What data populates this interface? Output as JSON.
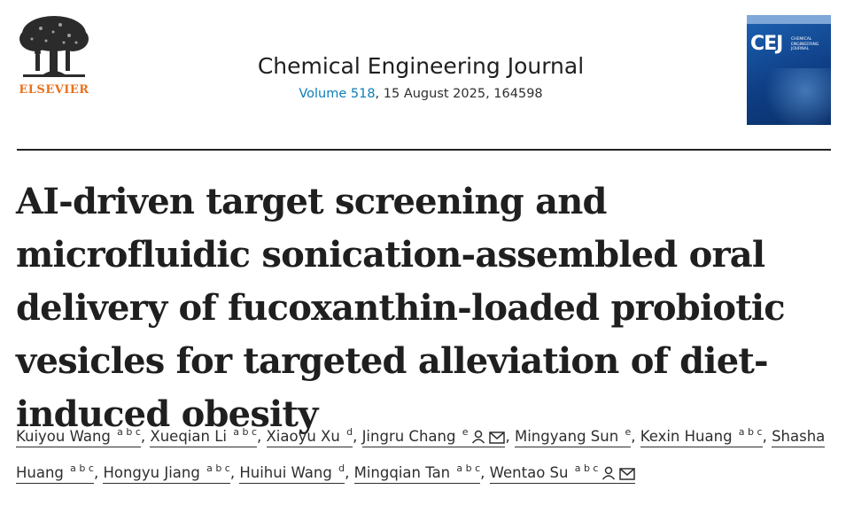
{
  "header": {
    "publisher": "ELSEVIER",
    "logo_icon": "elsevier-tree-icon",
    "journal_title": "Chemical Engineering Journal",
    "volume_link": "Volume 518",
    "issue_info": ", 15 August 2025, 164598"
  },
  "cover": {
    "acronym": "CEJ",
    "name": "Chemical Engineering Journal",
    "color": "#1d63b4"
  },
  "colors": {
    "publisher_orange": "#e9711c",
    "link_blue": "#0c7dbb"
  },
  "article": {
    "title": "AI-driven target screening and microfluidic sonication-assembled oral delivery of fucoxanthin-loaded probiotic vesicles for targeted alleviation of diet-induced obesity"
  },
  "authors": [
    {
      "name": "Kuiyou Wang",
      "aff": "a b c"
    },
    {
      "name": "Xueqian Li",
      "aff": "a b c"
    },
    {
      "name": "Xiaoyu Xu",
      "aff": "d"
    },
    {
      "name": "Jingru Chang",
      "aff": "e",
      "icons": [
        "person-icon",
        "mail-icon"
      ]
    },
    {
      "name": "Mingyang Sun",
      "aff": "e"
    },
    {
      "name": "Kexin Huang",
      "aff": "a b c"
    },
    {
      "name": "Shasha Huang",
      "aff": "a b c"
    },
    {
      "name": "Hongyu Jiang",
      "aff": "a b c"
    },
    {
      "name": "Huihui Wang",
      "aff": "d"
    },
    {
      "name": "Mingqian Tan",
      "aff": "a b c"
    },
    {
      "name": "Wentao Su",
      "aff": "a b c",
      "icons": [
        "person-icon",
        "mail-icon"
      ]
    }
  ]
}
